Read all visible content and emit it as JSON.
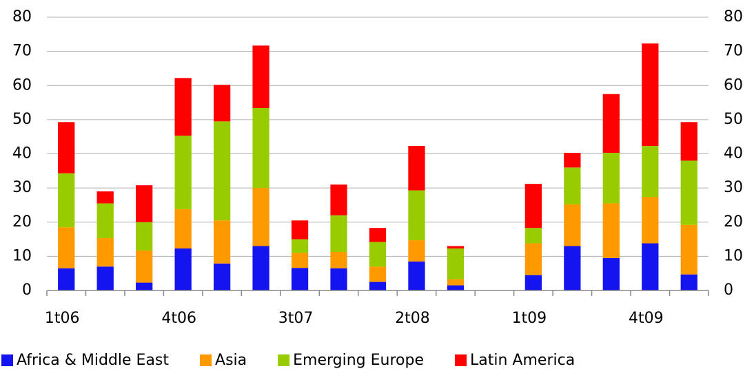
{
  "chart_data": {
    "type": "stacked_bar",
    "categories": [
      "1t06",
      null,
      null,
      "4t06",
      null,
      null,
      "3t07",
      null,
      null,
      "2t08",
      null,
      null,
      "1t09",
      null,
      null,
      "4t09",
      null
    ],
    "series": [
      {
        "name": "Africa & Middle East",
        "color": "#1414f0",
        "values": [
          6.5,
          7,
          2.3,
          12.3,
          7.9,
          13,
          6.6,
          6.5,
          2.5,
          8.5,
          1.5,
          null,
          4.5,
          13,
          9.5,
          13.8,
          4.7
        ]
      },
      {
        "name": "Asia",
        "color": "#ff9900",
        "values": [
          12,
          8.3,
          9.4,
          11.5,
          12.6,
          17,
          4.4,
          4.8,
          4.5,
          6.2,
          1.8,
          null,
          9.3,
          12.2,
          16,
          13.6,
          14.5
        ]
      },
      {
        "name": "Emerging Europe",
        "color": "#99cc00",
        "values": [
          15.8,
          10.2,
          8.3,
          21.5,
          29,
          23.4,
          4,
          10.7,
          7.2,
          14.6,
          9,
          null,
          4.5,
          10.8,
          14.8,
          14.9,
          18.8
        ]
      },
      {
        "name": "Latin America",
        "color": "#ff0000",
        "values": [
          15,
          3.5,
          10.8,
          16.9,
          10.7,
          18.3,
          5.5,
          9,
          4.1,
          13,
          0.7,
          null,
          12.9,
          4.3,
          17.2,
          30,
          11.3
        ]
      }
    ],
    "ylim": [
      0,
      80
    ],
    "yticks": [
      0,
      10,
      20,
      30,
      40,
      50,
      60,
      70,
      80
    ],
    "y2lim": [
      0,
      80
    ],
    "y2ticks": [
      0,
      10,
      20,
      30,
      40,
      50,
      60,
      70,
      80
    ],
    "grid": true,
    "legend": "bottom"
  }
}
